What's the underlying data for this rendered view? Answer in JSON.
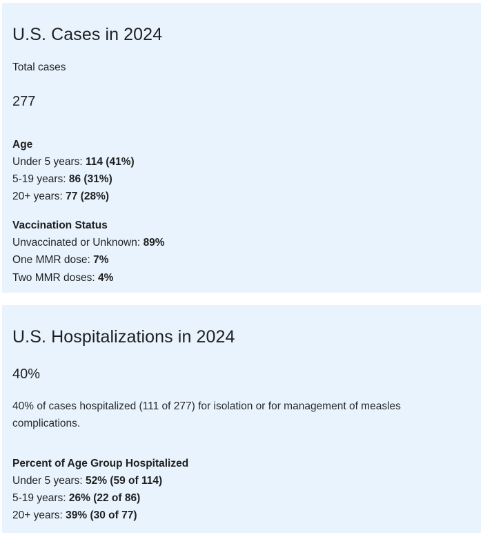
{
  "cases": {
    "title": "U.S. Cases in 2024",
    "total_label": "Total cases",
    "total_value": "277",
    "age": {
      "heading": "Age",
      "rows": [
        {
          "label": "Under 5 years:",
          "value": "114 (41%)"
        },
        {
          "label": "5-19 years:",
          "value": "86 (31%)"
        },
        {
          "label": "20+ years:",
          "value": "77 (28%)"
        }
      ]
    },
    "vaccination": {
      "heading": "Vaccination Status",
      "rows": [
        {
          "label": "Unvaccinated or Unknown:",
          "value": "89%"
        },
        {
          "label": "One MMR dose:",
          "value": "7%"
        },
        {
          "label": "Two MMR doses:",
          "value": "4%"
        }
      ]
    }
  },
  "hospitalizations": {
    "title": "U.S. Hospitalizations in 2024",
    "percent": "40%",
    "description": "40% of cases hospitalized (111 of 277) for isolation or for management of measles complications.",
    "age_group": {
      "heading": "Percent of Age Group Hospitalized",
      "rows": [
        {
          "label": "Under 5 years:",
          "value": "52% (59 of 114)"
        },
        {
          "label": "5-19 years:",
          "value": "26% (22 of 86)"
        },
        {
          "label": "20+ years:",
          "value": "39% (30 of 77)"
        }
      ]
    }
  },
  "colors": {
    "card_background": "#e8f3fd",
    "text": "#1f1f1f"
  }
}
